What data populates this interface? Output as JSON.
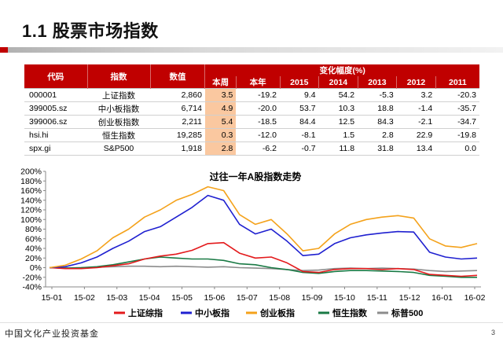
{
  "slide": {
    "title": "1.1 股票市场指数",
    "page_number": "3",
    "footer_logo": "中国文化产业投资基金"
  },
  "table": {
    "headers": {
      "code": "代码",
      "index": "指数",
      "value": "数值",
      "change_group": "变化幅度(%)",
      "periods": [
        "本周",
        "本年",
        "2015",
        "2014",
        "2013",
        "2012",
        "2011"
      ]
    },
    "rows": [
      {
        "code": "000001",
        "name": "上证指数",
        "value": "2,860",
        "changes": [
          "3.5",
          "-19.2",
          "9.4",
          "54.2",
          "-5.3",
          "3.2",
          "-20.3"
        ]
      },
      {
        "code": "399005.sz",
        "name": "中小板指数",
        "value": "6,714",
        "changes": [
          "4.9",
          "-20.0",
          "53.7",
          "10.3",
          "18.8",
          "-1.4",
          "-35.7"
        ]
      },
      {
        "code": "399006.sz",
        "name": "创业板指数",
        "value": "2,211",
        "changes": [
          "5.4",
          "-18.5",
          "84.4",
          "12.5",
          "84.3",
          "-2.1",
          "-34.7"
        ]
      },
      {
        "code": "hsi.hi",
        "name": "恒生指数",
        "value": "19,285",
        "changes": [
          "0.3",
          "-12.0",
          "-8.1",
          "1.5",
          "2.8",
          "22.9",
          "-19.8"
        ]
      },
      {
        "code": "spx.gi",
        "name": "S&P500",
        "value": "1,918",
        "changes": [
          "2.8",
          "-6.2",
          "-0.7",
          "11.8",
          "31.8",
          "13.4",
          "0.0"
        ]
      }
    ],
    "highlight_color": "#fac8a0",
    "header_color": "#c00000"
  },
  "chart_data": {
    "type": "line",
    "title": "过往一年A股指数走势",
    "xlabel": "",
    "ylabel": "",
    "ylim": [
      -40,
      200
    ],
    "yticks": [
      "-40%",
      "-20%",
      "0%",
      "20%",
      "40%",
      "60%",
      "80%",
      "100%",
      "120%",
      "140%",
      "160%",
      "180%",
      "200%"
    ],
    "x_tick_labels": [
      "15-01",
      "15-02",
      "15-03",
      "15-04",
      "15-05",
      "15-06",
      "15-07",
      "15-08",
      "15-09",
      "15-10",
      "15-11",
      "15-12",
      "16-01",
      "16-02"
    ],
    "x": [
      "15-01",
      "15-01",
      "15-02",
      "15-02",
      "15-03",
      "15-03",
      "15-04",
      "15-04",
      "15-05",
      "15-05",
      "15-06",
      "15-06",
      "15-07",
      "15-07",
      "15-08",
      "15-08",
      "15-09",
      "15-09",
      "15-10",
      "15-10",
      "15-11",
      "15-11",
      "15-12",
      "15-12",
      "16-01",
      "16-01",
      "16-02",
      "16-02"
    ],
    "legend_position": "bottom",
    "grid": false,
    "series": [
      {
        "name": "上证综指",
        "color": "#e31a1c",
        "values": [
          0,
          -2,
          -2,
          0,
          4,
          8,
          18,
          24,
          28,
          36,
          50,
          52,
          30,
          20,
          22,
          10,
          -8,
          -10,
          -4,
          -2,
          -2,
          -4,
          -2,
          -4,
          -14,
          -16,
          -18,
          -16
        ]
      },
      {
        "name": "中小板指",
        "color": "#1f20d0",
        "values": [
          0,
          2,
          10,
          22,
          40,
          55,
          75,
          85,
          105,
          125,
          150,
          140,
          90,
          70,
          80,
          55,
          25,
          28,
          50,
          62,
          68,
          72,
          75,
          74,
          32,
          22,
          18,
          20
        ]
      },
      {
        "name": "创业板指",
        "color": "#f4a21b",
        "values": [
          0,
          5,
          18,
          35,
          62,
          80,
          105,
          120,
          140,
          152,
          168,
          160,
          110,
          90,
          100,
          70,
          35,
          40,
          70,
          90,
          100,
          105,
          108,
          103,
          60,
          45,
          42,
          50
        ]
      },
      {
        "name": "恒生指数",
        "color": "#1a7a45",
        "values": [
          0,
          -1,
          0,
          2,
          6,
          12,
          18,
          22,
          20,
          18,
          18,
          15,
          8,
          6,
          0,
          -4,
          -10,
          -12,
          -8,
          -6,
          -6,
          -7,
          -8,
          -10,
          -16,
          -18,
          -20,
          -20
        ]
      },
      {
        "name": "标普500",
        "color": "#8c8c8c",
        "values": [
          0,
          -1,
          0,
          1,
          2,
          3,
          3,
          2,
          3,
          2,
          1,
          2,
          0,
          -1,
          -2,
          -4,
          -6,
          -5,
          -2,
          -1,
          -2,
          -1,
          -2,
          -3,
          -6,
          -8,
          -7,
          -6
        ]
      }
    ]
  }
}
